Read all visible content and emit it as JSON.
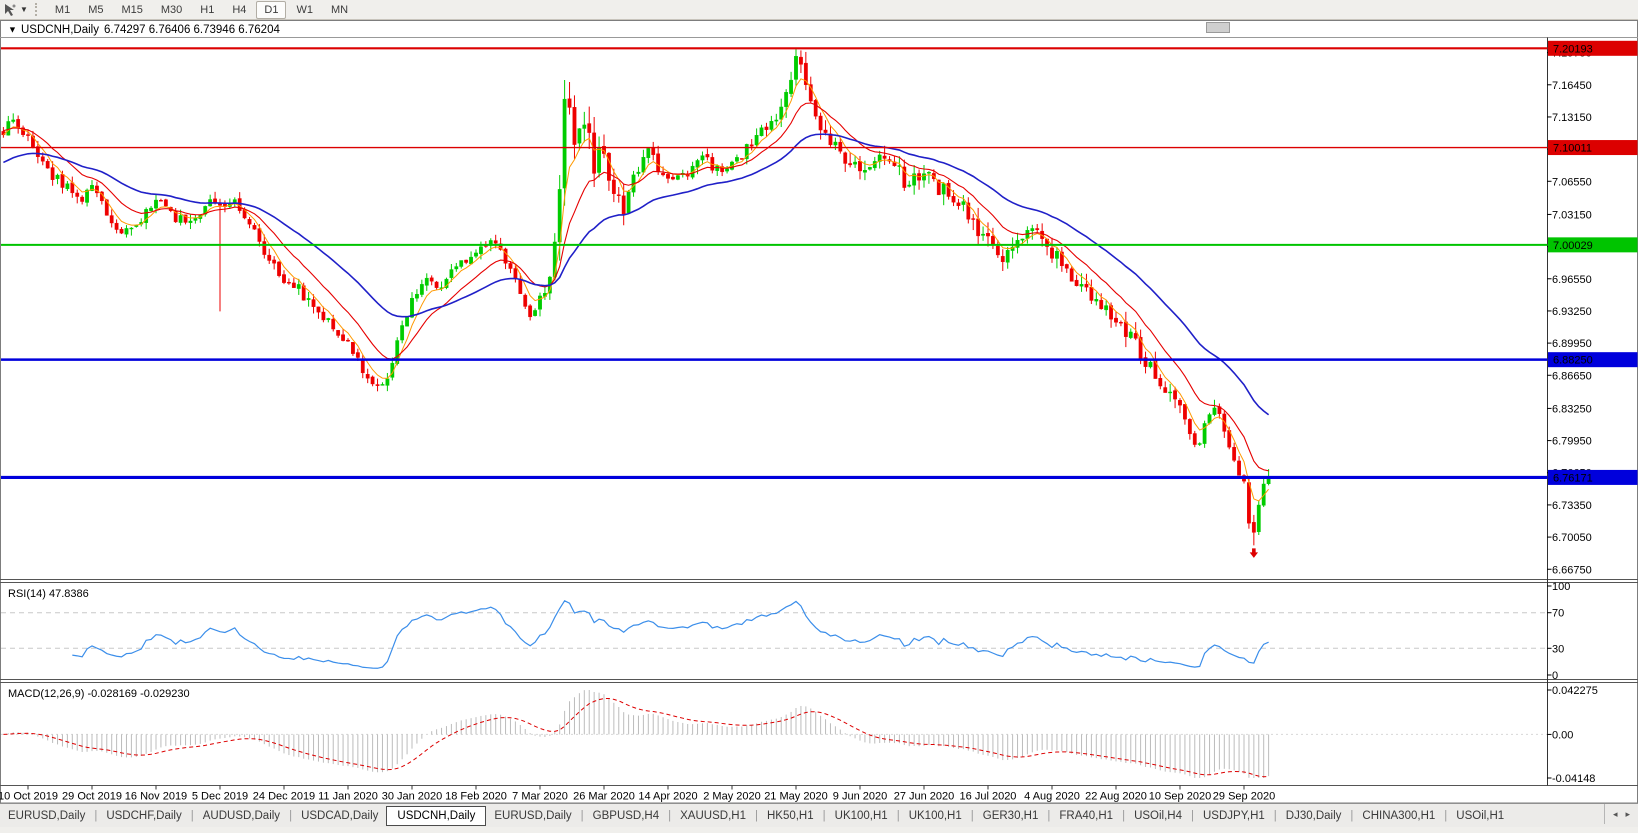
{
  "colors": {
    "up_candle": "#00CC00",
    "down_candle": "#EE0000",
    "ma_fast": "#FF9900",
    "ma_mid": "#E60000",
    "ma_slow": "#2020C8",
    "rsi_line": "#3B8EEA",
    "macd_hist": "#BCBCBC",
    "macd_signal": "#DD0000",
    "level_red": "#DC0000",
    "level_green": "#00C400",
    "level_blue": "#0000DC"
  },
  "toolbar": {
    "timeframes": [
      "M1",
      "M5",
      "M15",
      "M30",
      "H1",
      "H4",
      "D1",
      "W1",
      "MN"
    ],
    "active": "D1",
    "tool_icon": "crosshair-cursor",
    "caret_glyph": "▼"
  },
  "chart": {
    "collapse_marker": "▼",
    "title_symbol": "USDCNH,Daily",
    "ohlc_text": "6.74297 6.76406 6.73946 6.76204",
    "price_ticks": [
      "7.19750",
      "7.16450",
      "7.13150",
      "7.09850",
      "7.06550",
      "7.03150",
      "6.99850",
      "6.96550",
      "6.93250",
      "6.89950",
      "6.86650",
      "6.83250",
      "6.79950",
      "6.76650",
      "6.73350",
      "6.70050",
      "6.66750"
    ],
    "hlines": [
      {
        "price": 7.20193,
        "label": "7.20193",
        "color": "#DC0000",
        "width": 2.2
      },
      {
        "price": 7.10011,
        "label": "7.10011",
        "color": "#DC0000",
        "width": 1.3
      },
      {
        "price": 7.00029,
        "label": "7.00029",
        "color": "#00C400",
        "width": 2.0
      },
      {
        "price": 6.8825,
        "label": "6.88250",
        "color": "#0000DC",
        "width": 2.5
      },
      {
        "price": 6.76171,
        "label": "6.76171",
        "color": "#0000DC",
        "width": 3.2
      }
    ],
    "date_ticks": [
      "10 Oct 2019",
      "29 Oct 2019",
      "16 Nov 2019",
      "5 Dec 2019",
      "24 Dec 2019",
      "11 Jan 2020",
      "30 Jan 2020",
      "18 Feb 2020",
      "7 Mar 2020",
      "26 Mar 2020",
      "14 Apr 2020",
      "2 May 2020",
      "21 May 2020",
      "9 Jun 2020",
      "27 Jun 2020",
      "16 Jul 2020",
      "4 Aug 2020",
      "22 Aug 2020",
      "10 Sep 2020",
      "29 Sep 2020"
    ]
  },
  "chart_data": {
    "type": "candlestick",
    "symbol": "USDCNH",
    "timeframe": "Daily",
    "current_bar": {
      "open": 6.74297,
      "high": 6.76406,
      "low": 6.73946,
      "close": 6.76204
    },
    "axis_range": [
      6.6575,
      7.2125
    ],
    "count": 258,
    "anchors": [
      [
        0,
        7.118,
        0.016
      ],
      [
        2,
        7.132
      ],
      [
        5,
        7.108
      ],
      [
        9,
        7.075
      ],
      [
        13,
        7.058
      ],
      [
        16,
        7.045
      ],
      [
        18,
        7.062
      ],
      [
        21,
        7.032
      ],
      [
        23,
        7.012
      ],
      [
        26,
        7.02
      ],
      [
        29,
        7.032
      ],
      [
        31,
        7.048
      ],
      [
        34,
        7.03
      ],
      [
        38,
        7.026
      ],
      [
        42,
        7.042
      ],
      [
        44,
        7.036
      ],
      [
        47,
        7.047
      ],
      [
        50,
        7.02
      ],
      [
        53,
        6.995
      ],
      [
        57,
        6.962
      ],
      [
        60,
        6.955
      ],
      [
        63,
        6.937
      ],
      [
        66,
        6.924
      ],
      [
        70,
        6.9,
        0.014
      ],
      [
        73,
        6.872
      ],
      [
        76,
        6.856
      ],
      [
        78,
        6.866
      ],
      [
        81,
        6.915
      ],
      [
        83,
        6.943
      ],
      [
        86,
        6.968
      ],
      [
        89,
        6.957
      ],
      [
        92,
        6.98
      ],
      [
        96,
        6.99
      ],
      [
        99,
        7.008
      ],
      [
        102,
        6.985
      ],
      [
        105,
        6.955
      ],
      [
        107,
        6.928
      ],
      [
        109,
        6.943,
        0.02
      ],
      [
        111,
        6.962
      ],
      [
        113,
        7.06,
        0.045
      ],
      [
        114,
        7.155,
        0.045
      ],
      [
        116,
        7.1,
        0.04
      ],
      [
        118,
        7.128
      ],
      [
        120,
        7.078
      ],
      [
        122,
        7.1,
        0.028
      ],
      [
        124,
        7.05
      ],
      [
        126,
        7.032
      ],
      [
        128,
        7.068
      ],
      [
        131,
        7.09
      ],
      [
        135,
        7.068,
        0.016
      ],
      [
        139,
        7.072
      ],
      [
        142,
        7.09
      ],
      [
        145,
        7.077
      ],
      [
        148,
        7.082
      ],
      [
        151,
        7.1
      ],
      [
        154,
        7.118
      ],
      [
        157,
        7.134
      ],
      [
        159,
        7.158,
        0.026
      ],
      [
        161,
        7.188,
        0.026
      ],
      [
        163,
        7.168
      ],
      [
        165,
        7.132
      ],
      [
        168,
        7.11
      ],
      [
        171,
        7.092
      ],
      [
        174,
        7.072
      ],
      [
        177,
        7.082
      ],
      [
        180,
        7.09
      ],
      [
        183,
        7.064
      ],
      [
        187,
        7.072
      ],
      [
        190,
        7.06
      ],
      [
        193,
        7.048
      ],
      [
        196,
        7.03
      ],
      [
        200,
        7.006
      ],
      [
        203,
        6.99
      ],
      [
        206,
        7.01
      ],
      [
        209,
        7.018
      ],
      [
        213,
        6.992
      ],
      [
        216,
        6.972
      ],
      [
        219,
        6.962
      ],
      [
        222,
        6.942
      ],
      [
        226,
        6.92
      ],
      [
        229,
        6.908
      ],
      [
        232,
        6.884
      ],
      [
        235,
        6.858
      ],
      [
        239,
        6.83,
        0.02
      ],
      [
        242,
        6.792
      ],
      [
        244,
        6.812
      ],
      [
        246,
        6.832
      ],
      [
        248,
        6.81
      ],
      [
        250,
        6.782
      ],
      [
        252,
        6.752
      ],
      [
        253,
        6.715
      ],
      [
        254,
        6.703
      ],
      [
        255,
        6.737
      ],
      [
        256,
        6.752
      ],
      [
        257,
        6.762
      ]
    ],
    "wick_events": [
      {
        "i": 44,
        "low": 6.932
      },
      {
        "i": 161,
        "high": 7.1966
      },
      {
        "i": 254,
        "low": 6.692
      }
    ],
    "last_close": 6.76204,
    "moving_averages": [
      {
        "name": "fast",
        "period": 5,
        "color": "#FF9900",
        "width": 1,
        "init_offset": 0.0
      },
      {
        "name": "mid",
        "period": 13,
        "color": "#E60000",
        "width": 1.1,
        "init_offset": 0.005
      },
      {
        "name": "slow",
        "period": 34,
        "color": "#2020C8",
        "width": 1.6,
        "init_offset": -0.03
      }
    ],
    "marker": {
      "i": 254,
      "price": 6.692,
      "direction": "down",
      "color": "#DD0000"
    }
  },
  "rsi": {
    "label": "RSI(14) 47.8386",
    "period": 14,
    "value": 47.8386,
    "ticks": [
      "100",
      "70",
      "30",
      "0"
    ],
    "levels": [
      70,
      30
    ],
    "range": [
      0,
      100
    ],
    "line_color": "#3B8EEA"
  },
  "macd": {
    "label": "MACD(12,26,9) -0.028169 -0.029230",
    "fast": 12,
    "slow": 26,
    "signal": 9,
    "main_value": -0.028169,
    "signal_value": -0.02923,
    "ticks": [
      "0.042275",
      "0.00",
      "-0.04148"
    ],
    "range": [
      -0.04148,
      0.042275
    ]
  },
  "tabs": {
    "items": [
      "EURUSD,Daily",
      "USDCHF,Daily",
      "AUDUSD,Daily",
      "USDCAD,Daily",
      "USDCNH,Daily",
      "EURUSD,Daily",
      "GBPUSD,H4",
      "XAUUSD,H1",
      "HK50,H1",
      "UK100,H1",
      "UK100,H1",
      "GER30,H1",
      "FRA40,H1",
      "USOil,H4",
      "USDJPY,H1",
      "DJ30,Daily",
      "CHINA300,H1",
      "USOil,H1"
    ],
    "active_index": 4,
    "scroll_left_glyph": "◂",
    "scroll_right_glyph": "▸"
  }
}
